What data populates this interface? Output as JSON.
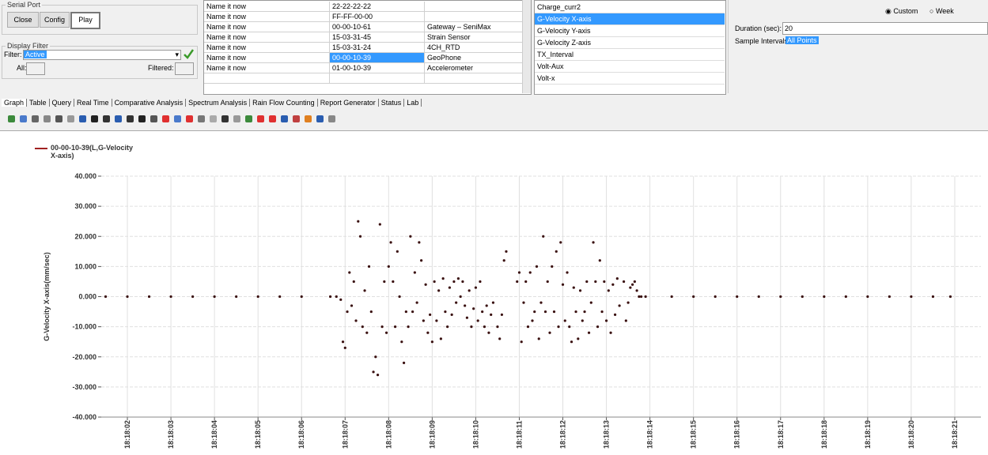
{
  "serial_port": {
    "title": "Serial Port",
    "buttons": [
      "Close",
      "Config",
      "Play"
    ]
  },
  "display_filter": {
    "title": "Display Filter",
    "filter_label": "Filter:",
    "filter_value": "Active",
    "all_label": "All:",
    "filtered_label": "Filtered:"
  },
  "table": {
    "rows": [
      [
        "Name it now",
        "22-22-22-22"
      ],
      [
        "Name it now",
        "FF-FF-00-00"
      ],
      [
        "Name it now",
        "00-00-10-61",
        "Gateway – SeniMax"
      ],
      [
        "Name it now",
        "15-03-31-45",
        "Strain Sensor"
      ],
      [
        "Name it now",
        "15-03-31-24",
        "4CH_RTD"
      ],
      [
        "Name it now",
        "00-00-10-39",
        "GeoPhone"
      ],
      [
        "Name it now",
        "01-00-10-39",
        "Accelerometer"
      ]
    ]
  },
  "channels": [
    "Charge_curr2",
    "G-Velocity X-axis",
    "G-Velocity Y-axis",
    "G-Velocity Z-axis",
    "TX_Interval",
    "Volt-Aux",
    "Volt-x"
  ],
  "range": {
    "options": [
      "Custom",
      "Week"
    ],
    "duration_label": "Duration (sec):",
    "duration_value": "20",
    "interval_label": "Sample Intervals:",
    "interval_value": "All Points"
  },
  "tabs": [
    "Graph",
    "Table",
    "Query",
    "Real Time",
    "Comparative Analysis",
    "Spectrum Analysis",
    "Rain Flow Counting",
    "Report Generator",
    "Status",
    "Lab"
  ],
  "chart_data": {
    "type": "line",
    "y_label": "G-Velocity X-axis(mm/sec)",
    "x": [
      65881.5,
      65882,
      65882.5,
      65883,
      65883.5,
      65884,
      65884.5,
      65885,
      65885.5,
      65886,
      65886.66,
      65886.8,
      65886.9,
      65886.95,
      65887,
      65887.05,
      65887.1,
      65887.15,
      65887.2,
      65887.25,
      65887.3,
      65887.35,
      65887.4,
      65887.45,
      65887.5,
      65887.55,
      65887.6,
      65887.65,
      65887.7,
      65887.75,
      65887.8,
      65887.85,
      65887.9,
      65887.95,
      65888,
      65888.05,
      65888.1,
      65888.15,
      65888.2,
      65888.25,
      65888.3,
      65888.35,
      65888.4,
      65888.45,
      65888.5,
      65888.55,
      65888.6,
      65888.65,
      65888.7,
      65888.75,
      65888.8,
      65888.85,
      65888.9,
      65888.95,
      65889,
      65889.05,
      65889.1,
      65889.15,
      65889.2,
      65889.25,
      65889.3,
      65889.35,
      65889.4,
      65889.45,
      65889.5,
      65889.55,
      65889.6,
      65889.65,
      65889.7,
      65889.75,
      65889.8,
      65889.85,
      65889.9,
      65889.95,
      65890,
      65890.05,
      65890.1,
      65890.15,
      65890.2,
      65890.25,
      65890.3,
      65890.35,
      65890.4,
      65890.5,
      65890.55,
      65890.6,
      65890.65,
      65890.7,
      65890.95,
      65891,
      65891.05,
      65891.1,
      65891.15,
      65891.2,
      65891.25,
      65891.3,
      65891.35,
      65891.4,
      65891.45,
      65891.5,
      65891.55,
      65891.6,
      65891.65,
      65891.7,
      65891.75,
      65891.8,
      65891.85,
      65891.9,
      65891.95,
      65892,
      65892.05,
      65892.1,
      65892.15,
      65892.2,
      65892.25,
      65892.3,
      65892.35,
      65892.4,
      65892.45,
      65892.5,
      65892.55,
      65892.6,
      65892.65,
      65892.7,
      65892.75,
      65892.8,
      65892.85,
      65892.9,
      65892.95,
      65893,
      65893.05,
      65893.1,
      65893.15,
      65893.2,
      65893.25,
      65893.3,
      65893.4,
      65893.45,
      65893.5,
      65893.55,
      65893.6,
      65893.65,
      65893.7,
      65893.75,
      65893.8,
      65893.9,
      65894.5,
      65895,
      65895.5,
      65896,
      65896.5,
      65897,
      65897.5,
      65898,
      65898.5,
      65899,
      65899.5,
      65900,
      65900.5,
      65900.9
    ],
    "series": [
      {
        "name": "00-00-10-39(L,G-Velocity X-axis)",
        "color": "#e03030",
        "marker_color": "#3a1010",
        "values": [
          0,
          0,
          0,
          0,
          0,
          0,
          0,
          0,
          0,
          0,
          0,
          0,
          -1,
          -15,
          -17,
          -5,
          8,
          -3,
          5,
          -8,
          25,
          20,
          -10,
          2,
          -12,
          10,
          -5,
          -25,
          -20,
          -26,
          24,
          -10,
          5,
          -12,
          10,
          18,
          5,
          -10,
          15,
          0,
          -15,
          -22,
          -5,
          -10,
          20,
          -5,
          8,
          -2,
          18,
          12,
          -8,
          4,
          -12,
          -6,
          -15,
          5,
          -8,
          2,
          -14,
          6,
          -5,
          -10,
          3,
          -6,
          5,
          -2,
          6,
          0,
          5,
          -3,
          -7,
          2,
          -10,
          -4,
          3,
          -8,
          5,
          -5,
          -10,
          -3,
          -12,
          -6,
          -2,
          -10,
          -14,
          -6,
          12,
          15,
          5,
          8,
          -15,
          -2,
          5,
          -10,
          8,
          -8,
          -5,
          10,
          -14,
          -2,
          20,
          -5,
          5,
          -12,
          10,
          -5,
          15,
          -10,
          18,
          4,
          -8,
          8,
          -10,
          -15,
          3,
          -5,
          -14,
          2,
          -8,
          -5,
          5,
          -12,
          -2,
          18,
          5,
          -10,
          12,
          -5,
          5,
          -8,
          2,
          -12,
          4,
          -6,
          6,
          -3,
          5,
          -8,
          -2,
          3,
          4,
          5,
          2,
          0,
          0,
          0,
          0,
          0,
          0,
          0,
          0,
          0,
          0,
          0,
          0,
          0,
          0,
          0,
          0,
          0
        ]
      }
    ],
    "xlim": [
      65881.4,
      65901.6
    ],
    "xticks": [
      {
        "value": 65882,
        "label": "18:18:02"
      },
      {
        "value": 65883,
        "label": "18:18:03"
      },
      {
        "value": 65884,
        "label": "18:18:04"
      },
      {
        "value": 65885,
        "label": "18:18:05"
      },
      {
        "value": 65886,
        "label": "18:18:06"
      },
      {
        "value": 65887,
        "label": "18:18:07"
      },
      {
        "value": 65888,
        "label": "18:18:08"
      },
      {
        "value": 65889,
        "label": "18:18:09"
      },
      {
        "value": 65890,
        "label": "18:18:10"
      },
      {
        "value": 65891,
        "label": "18:18:11"
      },
      {
        "value": 65892,
        "label": "18:18:12"
      },
      {
        "value": 65893,
        "label": "18:18:13"
      },
      {
        "value": 65894,
        "label": "18:18:14"
      },
      {
        "value": 65895,
        "label": "18:18:15"
      },
      {
        "value": 65896,
        "label": "18:18:16"
      },
      {
        "value": 65897,
        "label": "18:18:17"
      },
      {
        "value": 65898,
        "label": "18:18:18"
      },
      {
        "value": 65899,
        "label": "18:18:19"
      },
      {
        "value": 65900,
        "label": "18:18:20"
      },
      {
        "value": 65901,
        "label": "18:18:21"
      }
    ],
    "ylim": [
      -40,
      40
    ],
    "yticks": [
      {
        "value": -40,
        "label": "-40.000"
      },
      {
        "value": -30,
        "label": "-30.000"
      },
      {
        "value": -20,
        "label": "-20.000"
      },
      {
        "value": -10,
        "label": "-10.000"
      },
      {
        "value": 0,
        "label": "0.000"
      },
      {
        "value": 10,
        "label": "10.000"
      },
      {
        "value": 20,
        "label": "20.000"
      },
      {
        "value": 30,
        "label": "30.000"
      },
      {
        "value": 40,
        "label": "40.000"
      }
    ],
    "grid": true
  }
}
